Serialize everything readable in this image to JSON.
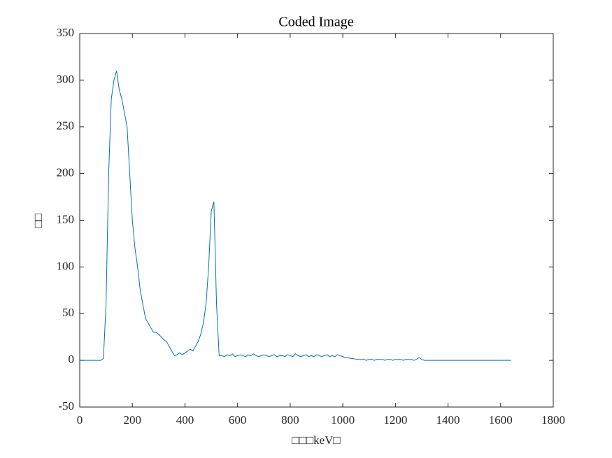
{
  "chart_data": {
    "type": "line",
    "title": "Coded Image",
    "x_label": "□□□keV□",
    "y_label": "□□",
    "x": [
      0,
      10,
      20,
      30,
      40,
      50,
      60,
      70,
      80,
      90,
      100,
      110,
      120,
      130,
      140,
      150,
      160,
      170,
      180,
      190,
      200,
      210,
      220,
      230,
      240,
      250,
      260,
      270,
      280,
      290,
      300,
      310,
      320,
      330,
      340,
      350,
      360,
      370,
      380,
      390,
      400,
      410,
      420,
      430,
      440,
      450,
      460,
      470,
      480,
      490,
      500,
      510,
      520,
      530,
      540,
      550,
      560,
      570,
      580,
      590,
      600,
      610,
      620,
      630,
      640,
      650,
      660,
      670,
      680,
      690,
      700,
      710,
      720,
      730,
      740,
      750,
      760,
      770,
      780,
      790,
      800,
      810,
      820,
      830,
      840,
      850,
      860,
      870,
      880,
      890,
      900,
      910,
      920,
      930,
      940,
      950,
      960,
      970,
      980,
      990,
      1000,
      1010,
      1020,
      1030,
      1040,
      1050,
      1060,
      1070,
      1080,
      1090,
      1100,
      1110,
      1120,
      1130,
      1140,
      1150,
      1160,
      1170,
      1180,
      1190,
      1200,
      1210,
      1220,
      1230,
      1240,
      1250,
      1260,
      1270,
      1280,
      1290,
      1300,
      1310,
      1320,
      1330,
      1340,
      1350,
      1360,
      1370,
      1380,
      1390,
      1400,
      1410,
      1420,
      1430,
      1440,
      1450,
      1460,
      1470,
      1480,
      1490,
      1500,
      1510,
      1520,
      1530,
      1540,
      1550,
      1560,
      1570,
      1580,
      1590,
      1600,
      1610,
      1620,
      1630,
      1640
    ],
    "series": [
      {
        "color": "#0072bd",
        "values": [
          0,
          0,
          0,
          0,
          0,
          0,
          0,
          0,
          0,
          2,
          60,
          200,
          280,
          300,
          310,
          290,
          280,
          265,
          250,
          200,
          150,
          120,
          100,
          75,
          60,
          45,
          40,
          35,
          30,
          30,
          28,
          25,
          22,
          20,
          15,
          10,
          5,
          6,
          8,
          6,
          8,
          10,
          12,
          10,
          15,
          20,
          28,
          40,
          60,
          100,
          160,
          170,
          60,
          5,
          5,
          4,
          6,
          5,
          7,
          4,
          5,
          6,
          5,
          4,
          6,
          5,
          7,
          5,
          4,
          5,
          6,
          5,
          4,
          5,
          6,
          4,
          5,
          5,
          4,
          6,
          5,
          4,
          7,
          5,
          4,
          5,
          6,
          4,
          5,
          4,
          6,
          5,
          4,
          5,
          6,
          4,
          5,
          4,
          6,
          5,
          4,
          3,
          3,
          2,
          2,
          1,
          1,
          1,
          1,
          0,
          1,
          1,
          0,
          1,
          1,
          1,
          0,
          1,
          1,
          0,
          1,
          1,
          1,
          0,
          1,
          1,
          1,
          0,
          1,
          3,
          1,
          0,
          0,
          0,
          0,
          0,
          0,
          0,
          0,
          0,
          0,
          0,
          0,
          0,
          0,
          0,
          0,
          0,
          0,
          0,
          0,
          0,
          0,
          0,
          0,
          0,
          0,
          0,
          0,
          0,
          0,
          0,
          0,
          0,
          0
        ]
      }
    ],
    "xlim": [
      0,
      1800
    ],
    "xticks": [
      0,
      200,
      400,
      600,
      800,
      1000,
      1200,
      1400,
      1600,
      1800
    ],
    "ylim": [
      -50,
      350
    ],
    "yticks": [
      -50,
      0,
      50,
      100,
      150,
      200,
      250,
      300,
      350
    ]
  }
}
